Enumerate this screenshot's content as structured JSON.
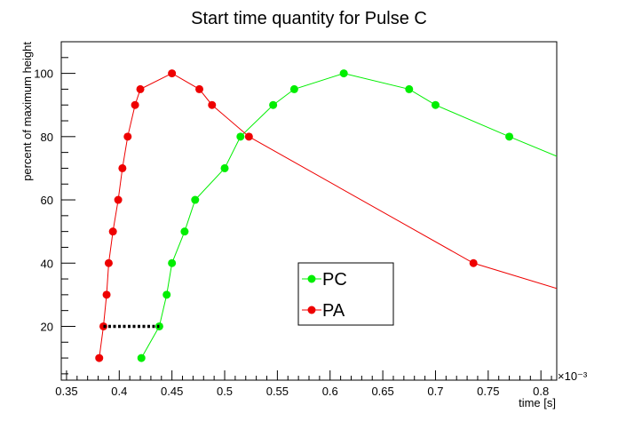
{
  "chart_data": {
    "type": "line",
    "title": "Start time quantity for Pulse C",
    "xlabel": "time [s]",
    "ylabel": "percent of maximum height",
    "x_exponent": "×10⁻³",
    "xlim": [
      0.345,
      0.815
    ],
    "ylim": [
      3,
      110
    ],
    "x_ticks": [
      "0.35",
      "0.4",
      "0.45",
      "0.5",
      "0.55",
      "0.6",
      "0.65",
      "0.7",
      "0.75",
      "0.8"
    ],
    "y_ticks": [
      "20",
      "40",
      "60",
      "80",
      "100"
    ],
    "legend_position": "center-right",
    "grid": false,
    "series": [
      {
        "name": "PC",
        "color": "#00ee00",
        "points": [
          [
            0.421,
            10
          ],
          [
            0.438,
            20
          ],
          [
            0.445,
            30
          ],
          [
            0.45,
            40
          ],
          [
            0.462,
            50
          ],
          [
            0.472,
            60
          ],
          [
            0.5,
            70
          ],
          [
            0.515,
            80
          ],
          [
            0.546,
            90
          ],
          [
            0.566,
            95
          ],
          [
            0.613,
            100
          ],
          [
            0.675,
            95
          ],
          [
            0.7,
            90
          ],
          [
            0.77,
            80
          ],
          [
            0.815,
            73.8
          ]
        ]
      },
      {
        "name": "PA",
        "color": "#ee0000",
        "points": [
          [
            0.381,
            10
          ],
          [
            0.385,
            20
          ],
          [
            0.388,
            30
          ],
          [
            0.39,
            40
          ],
          [
            0.394,
            50
          ],
          [
            0.399,
            60
          ],
          [
            0.403,
            70
          ],
          [
            0.408,
            80
          ],
          [
            0.415,
            90
          ],
          [
            0.42,
            95
          ],
          [
            0.45,
            100
          ],
          [
            0.476,
            95
          ],
          [
            0.488,
            90
          ],
          [
            0.523,
            80
          ],
          [
            0.736,
            40
          ],
          [
            0.815,
            32
          ]
        ]
      }
    ],
    "annotations": [
      {
        "type": "dotted-line",
        "from": [
          0.385,
          20
        ],
        "to": [
          0.438,
          20
        ]
      }
    ]
  }
}
